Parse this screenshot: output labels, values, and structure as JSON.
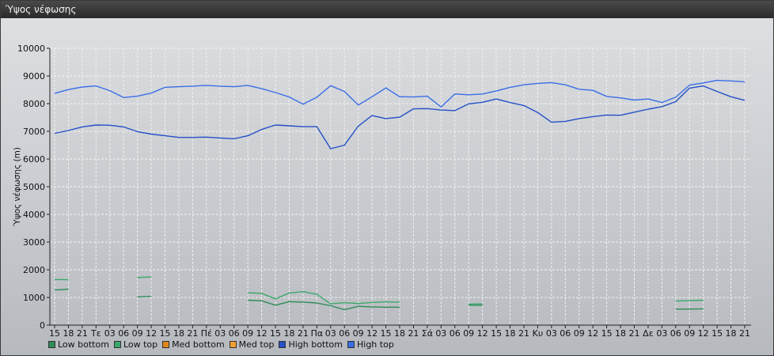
{
  "window": {
    "title": "Ύψος νέφωσης"
  },
  "chart_data": {
    "type": "line",
    "ylabel": "Ύψος νέφωσης (m)",
    "ylim": [
      0,
      10000
    ],
    "yticks": [
      0,
      1000,
      2000,
      3000,
      4000,
      5000,
      6000,
      7000,
      8000,
      9000,
      10000
    ],
    "x_tick_labels": [
      "15",
      "18",
      "21",
      "Τε",
      "03",
      "06",
      "09",
      "12",
      "15",
      "18",
      "21",
      "Πέ",
      "03",
      "06",
      "09",
      "12",
      "15",
      "18",
      "21",
      "Πα",
      "03",
      "06",
      "09",
      "12",
      "15",
      "18",
      "21",
      "Σά",
      "03",
      "06",
      "09",
      "12",
      "15",
      "18",
      "21",
      "Κυ",
      "03",
      "06",
      "09",
      "12",
      "15",
      "18",
      "21",
      "Δε",
      "03",
      "06",
      "09",
      "12",
      "15",
      "18",
      "21"
    ],
    "grid": true,
    "legend_position": "bottom-left",
    "series": [
      {
        "name": "Low bottom",
        "color": "#2e8b57",
        "values": [
          1270,
          1300,
          null,
          null,
          null,
          null,
          1020,
          1040,
          null,
          null,
          null,
          null,
          null,
          null,
          900,
          880,
          720,
          850,
          830,
          800,
          700,
          560,
          680,
          660,
          650,
          650,
          null,
          null,
          null,
          null,
          720,
          720,
          null,
          null,
          null,
          null,
          null,
          null,
          null,
          null,
          null,
          null,
          null,
          null,
          null,
          580,
          580,
          590,
          null,
          null,
          null
        ]
      },
      {
        "name": "Low top",
        "color": "#3aa86b",
        "values": [
          1650,
          1640,
          null,
          null,
          null,
          null,
          1720,
          1740,
          null,
          null,
          null,
          null,
          null,
          null,
          1170,
          1150,
          950,
          1160,
          1210,
          1110,
          770,
          810,
          780,
          820,
          840,
          830,
          null,
          null,
          null,
          null,
          760,
          770,
          null,
          null,
          null,
          null,
          null,
          null,
          null,
          null,
          null,
          null,
          null,
          null,
          null,
          870,
          890,
          900,
          null,
          null,
          null
        ]
      },
      {
        "name": "Med bottom",
        "color": "#e0861a",
        "values": []
      },
      {
        "name": "Med top",
        "color": "#f0a030",
        "values": []
      },
      {
        "name": "High bottom",
        "color": "#2450c8",
        "values": [
          6930,
          7030,
          7160,
          7230,
          7220,
          7160,
          6990,
          6900,
          6840,
          6780,
          6780,
          6790,
          6760,
          6730,
          6840,
          7070,
          7230,
          7200,
          7170,
          7170,
          6370,
          6500,
          7190,
          7570,
          7460,
          7510,
          7810,
          7820,
          7770,
          7750,
          7990,
          8050,
          8170,
          8040,
          7930,
          7680,
          7330,
          7360,
          7460,
          7530,
          7590,
          7580,
          7690,
          7800,
          7890,
          8070,
          8560,
          8640,
          8440,
          8250,
          8120
        ]
      },
      {
        "name": "High top",
        "color": "#3a6ee6",
        "values": [
          8370,
          8510,
          8600,
          8640,
          8470,
          8220,
          8270,
          8380,
          8590,
          8610,
          8630,
          8660,
          8630,
          8610,
          8660,
          8540,
          8400,
          8240,
          7980,
          8230,
          8650,
          8440,
          7950,
          8250,
          8570,
          8250,
          8240,
          8270,
          7880,
          8350,
          8320,
          8350,
          8460,
          8590,
          8680,
          8730,
          8760,
          8680,
          8520,
          8480,
          8260,
          8210,
          8130,
          8170,
          8040,
          8230,
          8670,
          8750,
          8840,
          8820,
          8790
        ]
      }
    ]
  }
}
